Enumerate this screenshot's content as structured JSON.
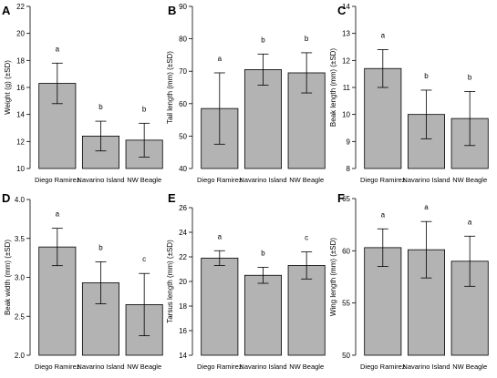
{
  "colors": {
    "bar": "#b3b3b3",
    "stroke": "#000000",
    "background": "#ffffff"
  },
  "chart_data": [
    {
      "type": "bar",
      "panel": "A",
      "ylabel": "Weight (g) (±SD)",
      "ylim": [
        10,
        22
      ],
      "yticks": [
        10,
        12,
        14,
        16,
        18,
        20,
        22
      ],
      "categories": [
        "Diego Ramirez",
        "Navarino Island",
        "NW Beagle"
      ],
      "values": [
        16.3,
        12.4,
        12.1
      ],
      "sd": [
        1.5,
        1.1,
        1.25
      ],
      "letters": [
        "a",
        "b",
        "b"
      ]
    },
    {
      "type": "bar",
      "panel": "B",
      "ylabel": "Tail length (mm) (±SD)",
      "ylim": [
        40,
        90
      ],
      "yticks": [
        40,
        50,
        60,
        70,
        80,
        90
      ],
      "categories": [
        "Diego Ramirez",
        "Navarino Island",
        "NW Beagle"
      ],
      "values": [
        58.5,
        70.5,
        69.5
      ],
      "sd": [
        11,
        4.8,
        6.2
      ],
      "letters": [
        "a",
        "b",
        "b"
      ]
    },
    {
      "type": "bar",
      "panel": "C",
      "ylabel": "Beak length (mm) (±SD)",
      "ylim": [
        8,
        14
      ],
      "yticks": [
        8,
        9,
        10,
        11,
        12,
        13,
        14
      ],
      "categories": [
        "Diego Ramirez",
        "Navarino Island",
        "NW Beagle"
      ],
      "values": [
        11.7,
        10.0,
        9.85
      ],
      "sd": [
        0.7,
        0.9,
        1.0
      ],
      "letters": [
        "a",
        "b",
        "b"
      ]
    },
    {
      "type": "bar",
      "panel": "D",
      "ylabel": "Beak width (mm) (±SD)",
      "ylim": [
        2.0,
        4.0
      ],
      "yticks": [
        2.0,
        2.5,
        3.0,
        3.5,
        4.0
      ],
      "categories": [
        "Diego Ramirez",
        "Navarino Island",
        "NW Beagle"
      ],
      "values": [
        3.39,
        2.93,
        2.65
      ],
      "sd": [
        0.24,
        0.27,
        0.4
      ],
      "letters": [
        "a",
        "b",
        "c"
      ]
    },
    {
      "type": "bar",
      "panel": "E",
      "ylabel": "Tarsus length (mm) (±SD)",
      "ylim": [
        14,
        26
      ],
      "yticks": [
        14,
        16,
        18,
        20,
        22,
        24,
        26
      ],
      "categories": [
        "Diego Ramirez",
        "Navarino Island",
        "NW Beagle"
      ],
      "values": [
        21.9,
        20.5,
        21.3
      ],
      "sd": [
        0.6,
        0.65,
        1.1
      ],
      "letters": [
        "a",
        "b",
        "c"
      ]
    },
    {
      "type": "bar",
      "panel": "F",
      "ylabel": "Wing length (mm) (±SD)",
      "ylim": [
        50,
        65
      ],
      "yticks": [
        50,
        55,
        60,
        65
      ],
      "categories": [
        "Diego Ramirez",
        "Navarino Island",
        "NW Beagle"
      ],
      "values": [
        60.3,
        60.1,
        59.0
      ],
      "sd": [
        1.8,
        2.7,
        2.4
      ],
      "letters": [
        "a",
        "a",
        "a"
      ]
    }
  ]
}
